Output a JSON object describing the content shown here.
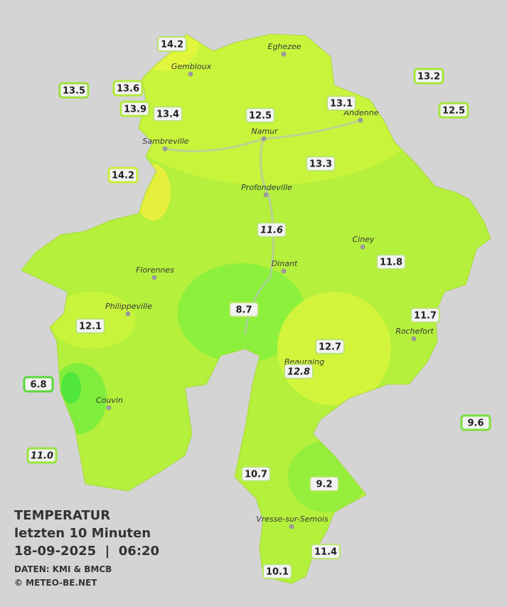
{
  "map": {
    "cities": [
      "Eghezee",
      "Gembloux",
      "Andenne",
      "Namur",
      "Sambreville",
      "Profondeville",
      "Ciney",
      "Dinant",
      "Florennes",
      "Philippeville",
      "Rochefort",
      "Beauraing",
      "Couvin",
      "Vresse-sur-Semois"
    ],
    "stations": [
      {
        "label": "14.2"
      },
      {
        "label": "13.5"
      },
      {
        "label": "13.6"
      },
      {
        "label": "13.9"
      },
      {
        "label": "13.4"
      },
      {
        "label": "12.5"
      },
      {
        "label": "13.1"
      },
      {
        "label": "13.2"
      },
      {
        "label": "12.5"
      },
      {
        "label": "14.2"
      },
      {
        "label": "13.3"
      },
      {
        "label": "11.6",
        "italic": true
      },
      {
        "label": "11.8"
      },
      {
        "label": "8.7"
      },
      {
        "label": "12.1"
      },
      {
        "label": "11.7"
      },
      {
        "label": "12.7"
      },
      {
        "label": "12.8",
        "italic": true
      },
      {
        "label": "6.8"
      },
      {
        "label": "9.6"
      },
      {
        "label": "11.0",
        "italic": true
      },
      {
        "label": "10.7"
      },
      {
        "label": "9.2"
      },
      {
        "label": "11.4"
      },
      {
        "label": "10.1"
      }
    ],
    "caption": {
      "title": "TEMPERATUR",
      "period": "letzten 10 Minuten",
      "datetime": "18-09-2025  |  06:20",
      "source": "DATEN: KMI & BMCB",
      "copyright": "© METEO-BE.NET"
    }
  }
}
